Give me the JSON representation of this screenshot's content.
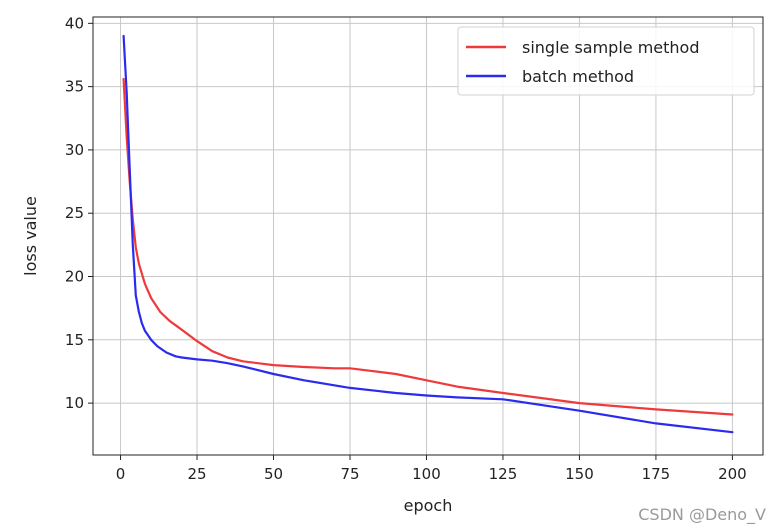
{
  "chart_data": {
    "type": "line",
    "title": "",
    "xlabel": "epoch",
    "ylabel": "loss value",
    "xlim": [
      -9,
      210
    ],
    "ylim": [
      5.9,
      40.5
    ],
    "xticks": [
      0,
      25,
      50,
      75,
      100,
      125,
      150,
      175,
      200
    ],
    "yticks": [
      10,
      15,
      20,
      25,
      30,
      35,
      40
    ],
    "grid": true,
    "legend_position": "top-right",
    "series": [
      {
        "name": "single sample method",
        "color": "#ee3a3a",
        "x": [
          1,
          2,
          3,
          4,
          5,
          6,
          8,
          10,
          13,
          16,
          20,
          25,
          30,
          35,
          40,
          50,
          60,
          70,
          75,
          80,
          90,
          100,
          110,
          125,
          150,
          175,
          200
        ],
        "y": [
          35.6,
          31.0,
          27.5,
          24.5,
          22.3,
          21.0,
          19.4,
          18.3,
          17.2,
          16.5,
          15.8,
          14.9,
          14.1,
          13.6,
          13.3,
          13.0,
          12.85,
          12.75,
          12.75,
          12.6,
          12.3,
          11.8,
          11.3,
          10.8,
          10.0,
          9.5,
          9.1
        ]
      },
      {
        "name": "batch method",
        "color": "#2b2bf0",
        "x": [
          1,
          2,
          3,
          4,
          5,
          6,
          7,
          8,
          10,
          12,
          15,
          18,
          20,
          25,
          30,
          35,
          40,
          50,
          60,
          75,
          90,
          100,
          110,
          125,
          150,
          175,
          200
        ],
        "y": [
          39.0,
          34.5,
          28.5,
          22.5,
          18.5,
          17.2,
          16.3,
          15.7,
          15.0,
          14.5,
          14.0,
          13.7,
          13.6,
          13.45,
          13.35,
          13.15,
          12.9,
          12.3,
          11.8,
          11.2,
          10.8,
          10.6,
          10.45,
          10.3,
          9.4,
          8.4,
          7.7
        ]
      }
    ]
  },
  "watermark": "CSDN @Deno_V"
}
